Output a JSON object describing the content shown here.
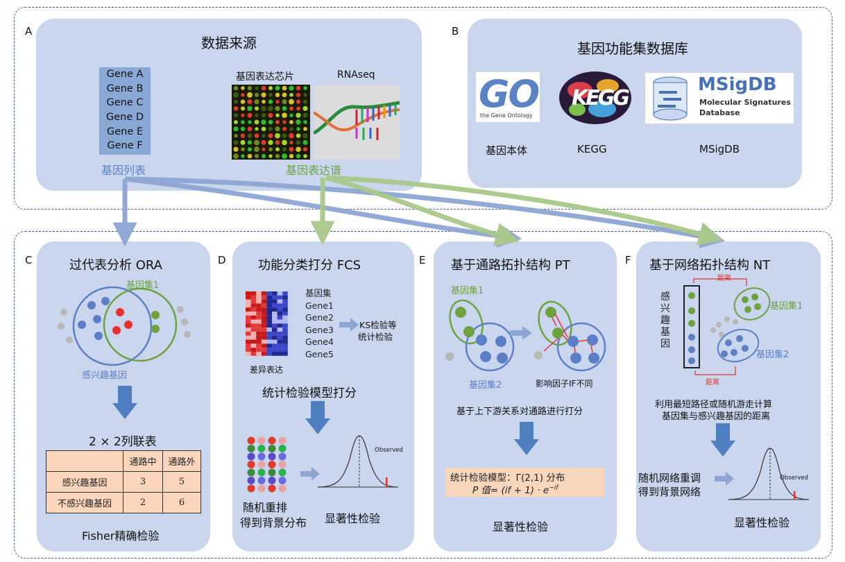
{
  "panel_a": {
    "letter": "A",
    "title": "数据来源",
    "genes": [
      "Gene A",
      "Gene B",
      "Gene C",
      "Gene D",
      "Gene E",
      "Gene F"
    ],
    "gene_list_label": "基因列表",
    "chip_label": "基因表达芯片",
    "rnaseq_label": "RNAseq",
    "expression_label": "基因表达谱"
  },
  "panel_b": {
    "letter": "B",
    "title": "基因功能集数据库",
    "go_logo": "GO",
    "go_sub": "the Gene Ontology",
    "kegg_logo": "KEGG",
    "msig_logo": "MSigDB",
    "msig_sub1": "Molecular Signatures",
    "msig_sub2": "Database",
    "labels": [
      "基因本体",
      "KEGG",
      "MSigDB"
    ]
  },
  "panel_c": {
    "letter": "C",
    "title": "过代表分析 ORA",
    "set1_label": "基因集1",
    "interest_label": "感兴趣基因",
    "table_title": "2 × 2列联表",
    "table_header": [
      "",
      "通路中",
      "通路外"
    ],
    "table_rows": [
      [
        "感兴趣基因",
        "3",
        "5"
      ],
      [
        "不感兴趣基因",
        "2",
        "6"
      ]
    ],
    "footer": "Fisher精确检验"
  },
  "panel_d": {
    "letter": "D",
    "title": "功能分类打分 FCS",
    "geneset_list": [
      "基因集",
      "Gene1",
      "Gene2",
      "Gene3",
      "Gene4",
      "Gene5"
    ],
    "diff_label": "差异表达",
    "ks_label1": "KS检验等",
    "ks_label2": "统计检验",
    "model_label": "统计检验模型打分",
    "permute1": "随机重排",
    "permute2": "得到背景分布",
    "observed": "Observed",
    "footer": "显著性检验"
  },
  "panel_e": {
    "letter": "E",
    "title": "基于通路拓扑结构 PT",
    "set1_label": "基因集1",
    "set2_label": "基因集2",
    "impact_label": "影响因子IF不同",
    "caption": "基于上下游关系对通路进行打分",
    "formula1": "统计检验模型：Γ(2,1) 分布",
    "formula2": "P 值= (if + 1) · e",
    "formula2_exp": "−if",
    "footer": "显著性检验"
  },
  "panel_f": {
    "letter": "F",
    "title": "基于网络拓扑结构 NT",
    "vertical_label": [
      "感",
      "兴",
      "趣",
      "基",
      "因"
    ],
    "distance": "距离",
    "set1_label": "基因集1",
    "set2_label": "基因集2",
    "caption1": "利用最短路径或随机游走计算",
    "caption2": "基因集与感兴趣基因的距离",
    "rewire1": "随机网络重调",
    "rewire2": "得到背景网络",
    "observed": "Observed",
    "footer": "显著性检验"
  },
  "colors": {
    "panel": "#c9d6ee",
    "blue": "#5d7fc7",
    "green": "#6da33f",
    "red": "#e8312c",
    "gray": "#b7b7b7",
    "arrow_blue": "#8fa6d4",
    "arrow_green": "#a9c98a",
    "down_arrow": "#4f7fc0"
  }
}
